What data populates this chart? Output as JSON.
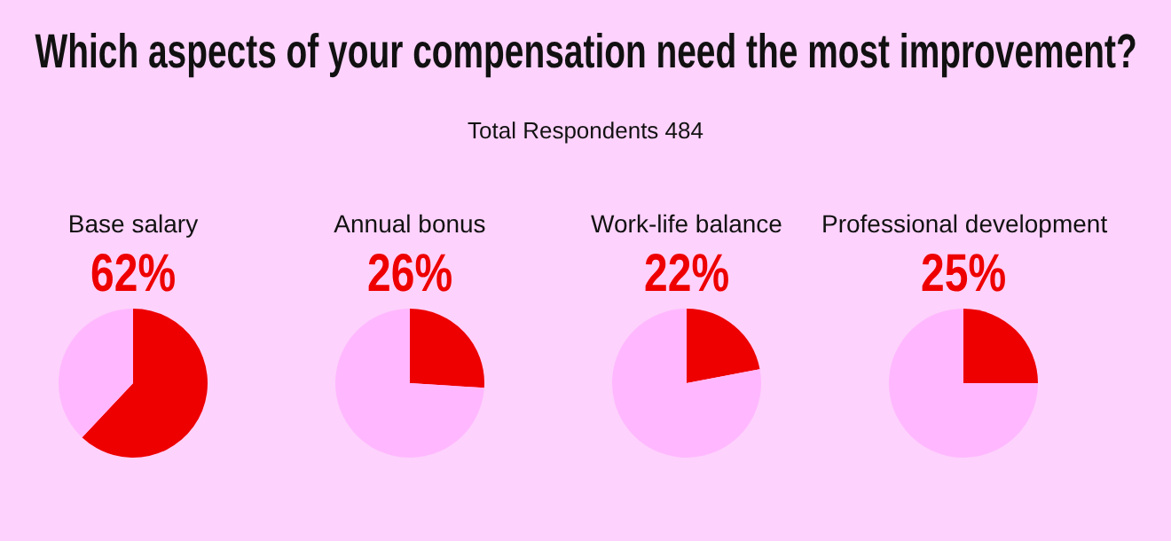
{
  "chart_data": [
    {
      "type": "other",
      "title": "Which aspects of your compensation need the most improvement?",
      "subtitle": "Total Respondents 484"
    },
    {
      "type": "pie",
      "title": "Base salary",
      "categories": [
        null,
        null
      ],
      "values": [
        62,
        38
      ],
      "colors": [
        "#ee0000",
        "#ffb8ff"
      ],
      "value_labels": [
        "62%",
        null
      ]
    },
    {
      "type": "pie",
      "title": "Annual bonus",
      "categories": [
        null,
        null
      ],
      "values": [
        26,
        74
      ],
      "colors": [
        "#ee0000",
        "#ffb8ff"
      ],
      "value_labels": [
        "26%",
        null
      ]
    },
    {
      "type": "pie",
      "title": "Work-life balance",
      "categories": [
        null,
        null
      ],
      "values": [
        22,
        78
      ],
      "colors": [
        "#ee0000",
        "#ffb8ff"
      ],
      "value_labels": [
        "22%",
        null
      ]
    },
    {
      "type": "pie",
      "title": "Professional development",
      "categories": [
        null,
        null
      ],
      "values": [
        25,
        75
      ],
      "colors": [
        "#ee0000",
        "#ffb8ff"
      ],
      "value_labels": [
        "25%",
        null
      ]
    }
  ]
}
